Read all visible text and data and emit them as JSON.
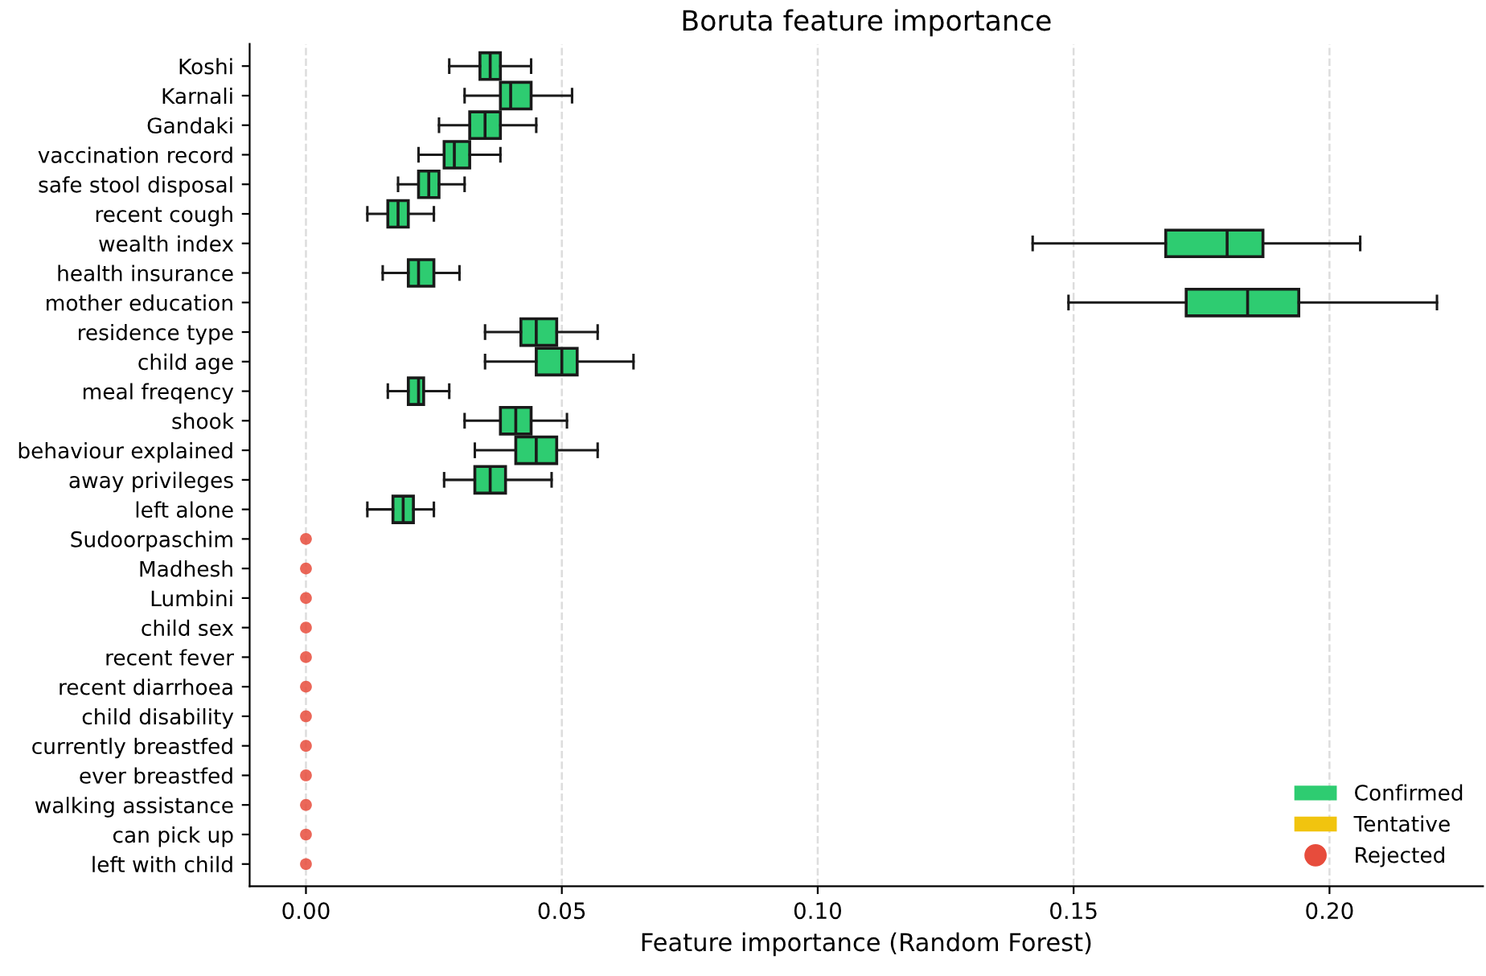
{
  "chart_data": {
    "type": "box",
    "title": "Boruta feature importance",
    "xlabel": "Feature importance (Random Forest)",
    "orientation": "horizontal",
    "categories": [
      "Koshi",
      "Karnali",
      "Gandaki",
      "vaccination record",
      "safe stool disposal",
      "recent cough",
      "wealth index",
      "health insurance",
      "mother education",
      "residence type",
      "child age",
      "meal freqency",
      "shook",
      "behaviour explained",
      "away privileges",
      "left alone",
      "Sudoorpaschim",
      "Madhesh",
      "Lumbini",
      "child sex",
      "recent fever",
      "recent diarrhoea",
      "child disability",
      "currently breastfed",
      "ever breastfed",
      "walking assistance",
      "can pick up",
      "left with child"
    ],
    "xlim": [
      -0.011,
      0.23
    ],
    "xticks": [
      {
        "value": 0,
        "label": "0.00"
      },
      {
        "value": 0.05,
        "label": "0.05"
      },
      {
        "value": 0.1,
        "label": "0.10"
      },
      {
        "value": 0.15,
        "label": "0.15"
      },
      {
        "value": 0.2,
        "label": "0.20"
      }
    ],
    "grid": "x",
    "legend": "bottom right",
    "series": [
      {
        "name": "Confirmed",
        "color": "#2ecc71",
        "boxes": [
          {
            "low": 0.028,
            "q1": 0.034,
            "median": 0.036,
            "q3": 0.038,
            "high": 0.044
          },
          {
            "low": 0.031,
            "q1": 0.038,
            "median": 0.04,
            "q3": 0.044,
            "high": 0.052
          },
          {
            "low": 0.026,
            "q1": 0.032,
            "median": 0.035,
            "q3": 0.038,
            "high": 0.045
          },
          {
            "low": 0.022,
            "q1": 0.027,
            "median": 0.029,
            "q3": 0.032,
            "high": 0.038
          },
          {
            "low": 0.018,
            "q1": 0.022,
            "median": 0.024,
            "q3": 0.026,
            "high": 0.031
          },
          {
            "low": 0.012,
            "q1": 0.016,
            "median": 0.018,
            "q3": 0.02,
            "high": 0.025
          },
          {
            "low": 0.142,
            "q1": 0.168,
            "median": 0.18,
            "q3": 0.187,
            "high": 0.206
          },
          {
            "low": 0.015,
            "q1": 0.02,
            "median": 0.022,
            "q3": 0.025,
            "high": 0.03
          },
          {
            "low": 0.149,
            "q1": 0.172,
            "median": 0.184,
            "q3": 0.194,
            "high": 0.221
          },
          {
            "low": 0.035,
            "q1": 0.042,
            "median": 0.045,
            "q3": 0.049,
            "high": 0.057
          },
          {
            "low": 0.035,
            "q1": 0.045,
            "median": 0.05,
            "q3": 0.053,
            "high": 0.064
          },
          {
            "low": 0.016,
            "q1": 0.02,
            "median": 0.022,
            "q3": 0.023,
            "high": 0.028
          },
          {
            "low": 0.031,
            "q1": 0.038,
            "median": 0.041,
            "q3": 0.044,
            "high": 0.051
          },
          {
            "low": 0.033,
            "q1": 0.041,
            "median": 0.045,
            "q3": 0.049,
            "high": 0.057
          },
          {
            "low": 0.027,
            "q1": 0.033,
            "median": 0.036,
            "q3": 0.039,
            "high": 0.048
          },
          {
            "low": 0.012,
            "q1": 0.017,
            "median": 0.019,
            "q3": 0.021,
            "high": 0.025
          },
          null,
          null,
          null,
          null,
          null,
          null,
          null,
          null,
          null,
          null,
          null,
          null
        ]
      },
      {
        "name": "Tentative",
        "color": "#f1c40f",
        "boxes": [
          null,
          null,
          null,
          null,
          null,
          null,
          null,
          null,
          null,
          null,
          null,
          null,
          null,
          null,
          null,
          null,
          null,
          null,
          null,
          null,
          null,
          null,
          null,
          null,
          null,
          null,
          null,
          null
        ]
      },
      {
        "name": "Rejected",
        "type": "scatter",
        "color": "#e74c3c",
        "marker": "circle",
        "values": [
          null,
          null,
          null,
          null,
          null,
          null,
          null,
          null,
          null,
          null,
          null,
          null,
          null,
          null,
          null,
          null,
          0,
          0,
          0,
          0,
          0,
          0,
          0,
          0,
          0,
          0,
          0,
          0
        ]
      }
    ]
  }
}
